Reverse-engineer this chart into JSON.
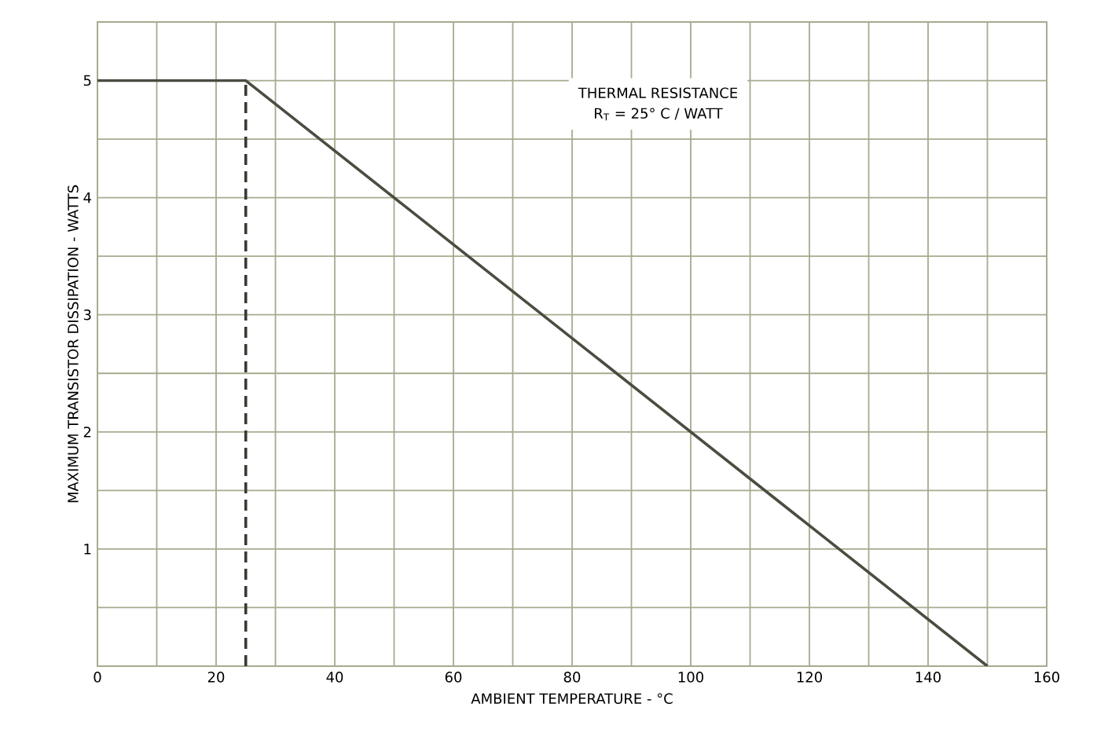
{
  "chart_data": {
    "type": "line",
    "xlabel": "AMBIENT TEMPERATURE - °C",
    "ylabel": "MAXIMUM TRANSISTOR DISSIPATION - WATTS",
    "annotations": [
      "THERMAL RESISTANCE",
      "R$_{T}$ = 25° C / WATT"
    ],
    "series": [
      {
        "x": [
          0,
          25,
          150
        ],
        "values": [
          5,
          5,
          0
        ],
        "color": "#4a4d40",
        "line_style": "solid"
      },
      {
        "x": [
          25,
          25
        ],
        "values": [
          0,
          5
        ],
        "color": "#3a3a33",
        "line_style": "dashed"
      }
    ],
    "xlim": [
      0,
      160
    ],
    "ylim": [
      0,
      5.5
    ],
    "xticks": [
      0,
      {
        "value": 10,
        "label": null
      },
      20,
      {
        "value": 30,
        "label": null
      },
      40,
      {
        "value": 50,
        "label": null
      },
      60,
      {
        "value": 70,
        "label": null
      },
      80,
      {
        "value": 90,
        "label": null
      },
      100,
      {
        "value": 110,
        "label": null
      },
      120,
      {
        "value": 130,
        "label": null
      },
      140,
      {
        "value": 150,
        "label": null
      },
      160
    ],
    "yticks": [
      {
        "value": 0.5,
        "label": null
      },
      1,
      {
        "value": 1.5,
        "label": null
      },
      2,
      {
        "value": 2.5,
        "label": null
      },
      3,
      {
        "value": 3.5,
        "label": null
      },
      4,
      {
        "value": 4.5,
        "label": null
      },
      5,
      {
        "value": 5.5,
        "label": null
      }
    ],
    "grid": true,
    "marker": "none"
  }
}
